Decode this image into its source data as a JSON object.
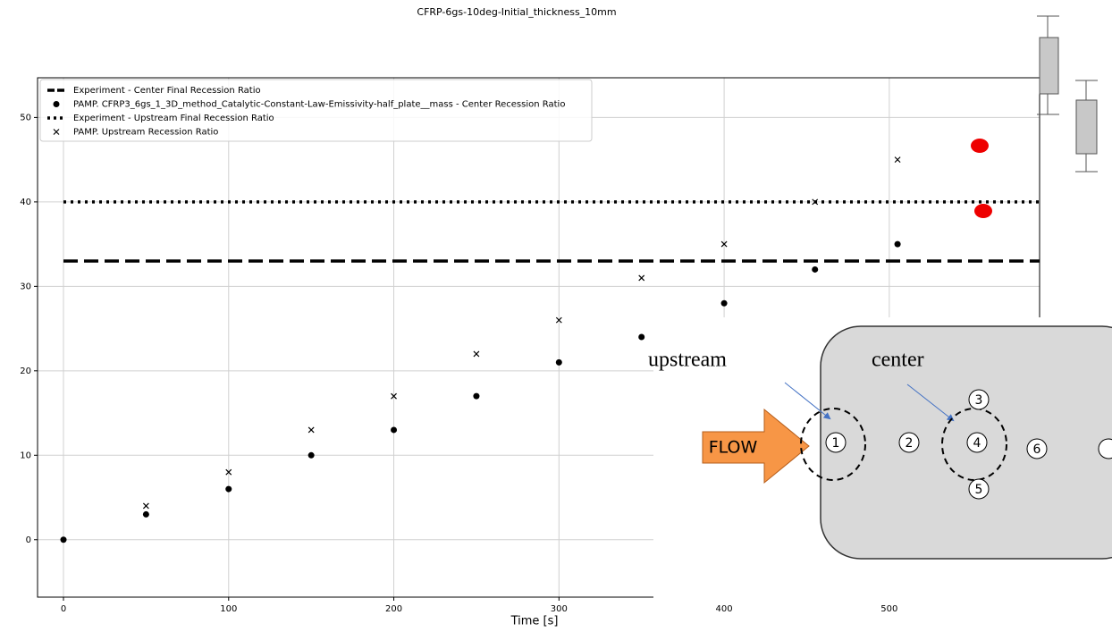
{
  "chart_data": {
    "type": "scatter",
    "title": "CFRP-6gs-10deg-Initial_thickness_10mm",
    "x_label": "Time [s]",
    "xlim": [
      -15.7,
      591
    ],
    "ylim": [
      -6.8,
      54.7
    ],
    "xticks": [
      0,
      100,
      200,
      300,
      400,
      500
    ],
    "yticks": [
      0,
      10,
      20,
      30,
      40,
      50
    ],
    "grid": true,
    "legend": "upper left",
    "series": [
      {
        "name": "Experiment - Center  Final Recession Ratio",
        "marker": "dashed-line",
        "color": "#000000",
        "values": [
          33
        ]
      },
      {
        "name": "PAMP. CFRP3_6gs_1_3D_method_Catalytic-Constant-Law-Emissivity-half_plate__mass - Center Recession Ratio",
        "marker": "dot",
        "color": "#000000",
        "x": [
          0,
          50,
          100,
          150,
          200,
          250,
          300,
          350,
          400,
          455,
          505
        ],
        "values": [
          0,
          3,
          6,
          10,
          13,
          17,
          21,
          24,
          28,
          32,
          35
        ]
      },
      {
        "name": "Experiment - Upstream Final Recession Ratio",
        "marker": "dotted-line",
        "color": "#000000",
        "values": [
          40
        ]
      },
      {
        "name": "PAMP. Upstream Recession Ratio",
        "marker": "x",
        "color": "#000000",
        "x": [
          50,
          100,
          150,
          200,
          250,
          300,
          350,
          400,
          455,
          505
        ],
        "values": [
          4,
          8,
          13,
          17,
          22,
          26,
          31,
          35,
          40,
          45
        ]
      }
    ]
  },
  "overlay": {
    "upstream": "upstream",
    "center": "center",
    "flow": "FLOW",
    "positions": [
      "1",
      "2",
      "3",
      "4",
      "5",
      "6"
    ]
  }
}
